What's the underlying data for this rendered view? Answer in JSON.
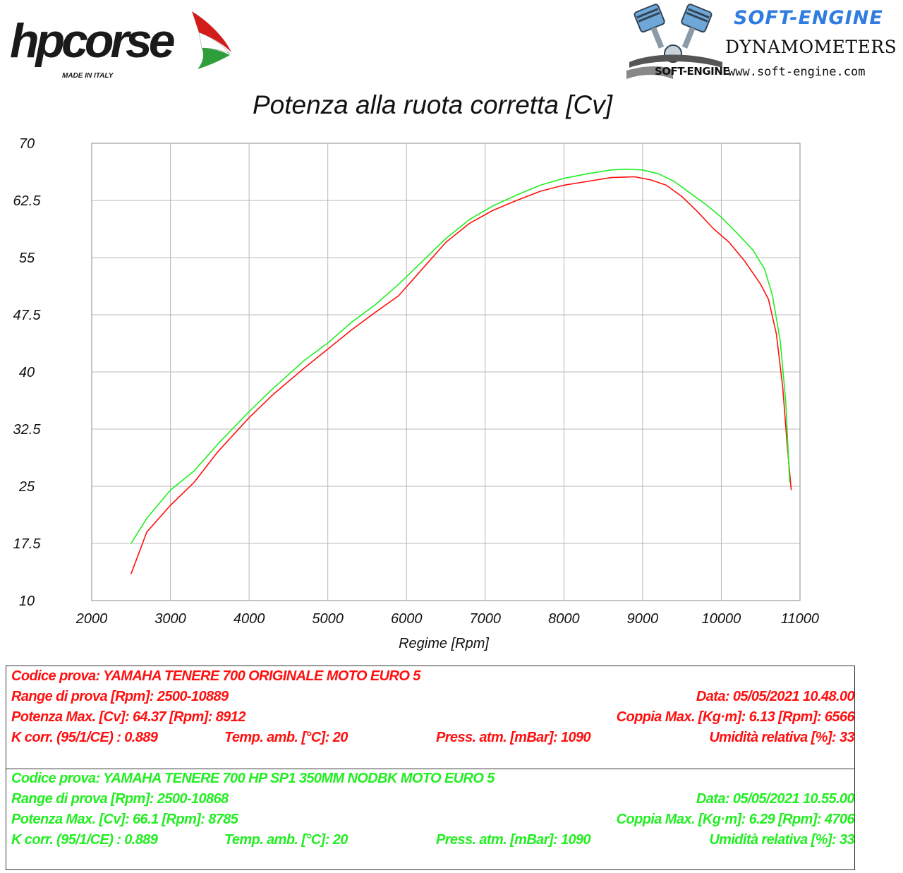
{
  "header": {
    "brand_left": "hpcorse",
    "brand_left_tagline": "MADE IN ITALY",
    "brand_right_title": "SOFT-ENGINE",
    "brand_right_small": "SOFT-ENGINE",
    "brand_right_subtitle": "DYNAMOMETERS",
    "brand_right_url": "www.soft-engine.com"
  },
  "colors": {
    "original": "#ff1010",
    "hp_exhaust": "#22ee22",
    "grid": "#b8b8b8",
    "accent_blue": "#2f7de0"
  },
  "chart_data": {
    "type": "line",
    "title": "Potenza alla ruota corretta [Cv]",
    "xlabel": "Regime [Rpm]",
    "ylabel": "",
    "xlim": [
      2000,
      11000
    ],
    "ylim": [
      10,
      70
    ],
    "x_ticks": [
      "2000",
      "3000",
      "4000",
      "5000",
      "6000",
      "7000",
      "8000",
      "9000",
      "10000",
      "11000"
    ],
    "y_ticks": [
      "10",
      "17.5",
      "25",
      "32.5",
      "40",
      "47.5",
      "55",
      "62.5",
      "70"
    ],
    "grid": true,
    "series": [
      {
        "color": "#ff1010",
        "points": [
          [
            2500,
            13.5
          ],
          [
            2700,
            19
          ],
          [
            3000,
            22.5
          ],
          [
            3300,
            25.5
          ],
          [
            3600,
            29.5
          ],
          [
            4000,
            34
          ],
          [
            4300,
            37
          ],
          [
            4700,
            40.5
          ],
          [
            5000,
            43
          ],
          [
            5300,
            45.5
          ],
          [
            5600,
            47.8
          ],
          [
            5900,
            50
          ],
          [
            6200,
            53.5
          ],
          [
            6500,
            57
          ],
          [
            6800,
            59.5
          ],
          [
            7100,
            61.2
          ],
          [
            7400,
            62.5
          ],
          [
            7700,
            63.7
          ],
          [
            8000,
            64.5
          ],
          [
            8300,
            65
          ],
          [
            8600,
            65.5
          ],
          [
            8900,
            65.6
          ],
          [
            9100,
            65.2
          ],
          [
            9300,
            64.5
          ],
          [
            9500,
            63
          ],
          [
            9700,
            61
          ],
          [
            9900,
            58.8
          ],
          [
            10100,
            57
          ],
          [
            10300,
            54.5
          ],
          [
            10500,
            51.5
          ],
          [
            10600,
            49.5
          ],
          [
            10700,
            45
          ],
          [
            10780,
            38
          ],
          [
            10840,
            30
          ],
          [
            10889,
            24.5
          ]
        ]
      },
      {
        "color": "#22ee22",
        "points": [
          [
            2500,
            17.5
          ],
          [
            2700,
            20.8
          ],
          [
            3000,
            24.5
          ],
          [
            3300,
            27
          ],
          [
            3600,
            30.5
          ],
          [
            4000,
            34.8
          ],
          [
            4300,
            37.8
          ],
          [
            4700,
            41.5
          ],
          [
            5000,
            43.8
          ],
          [
            5300,
            46.5
          ],
          [
            5600,
            48.8
          ],
          [
            5900,
            51.5
          ],
          [
            6200,
            54.5
          ],
          [
            6500,
            57.5
          ],
          [
            6800,
            60
          ],
          [
            7100,
            61.8
          ],
          [
            7400,
            63.2
          ],
          [
            7700,
            64.5
          ],
          [
            8000,
            65.4
          ],
          [
            8300,
            66
          ],
          [
            8600,
            66.5
          ],
          [
            8785,
            66.6
          ],
          [
            9000,
            66.5
          ],
          [
            9200,
            66
          ],
          [
            9400,
            65
          ],
          [
            9600,
            63.5
          ],
          [
            9800,
            62
          ],
          [
            10000,
            60.3
          ],
          [
            10200,
            58.2
          ],
          [
            10400,
            56
          ],
          [
            10550,
            53.5
          ],
          [
            10650,
            50
          ],
          [
            10750,
            44
          ],
          [
            10820,
            36
          ],
          [
            10868,
            25.5
          ]
        ]
      }
    ]
  },
  "runs": [
    {
      "code": "Codice prova: YAMAHA TENERE 700 ORIGINALE  MOTO EURO 5",
      "range": "Range di prova [Rpm]: 2500-10889",
      "date": "Data: 05/05/2021   10.48.00",
      "power": "Potenza Max. [Cv]: 64.37   [Rpm]: 8912",
      "torque": "Coppia Max. [Kg·m]: 6.13   [Rpm]: 6566",
      "kcorr": "K corr. (95/1/CE) : 0.889",
      "temp": "Temp. amb. [°C]: 20",
      "press": "Press. atm. [mBar]: 1090",
      "hum": "Umidità relativa [%]: 33"
    },
    {
      "code": "Codice prova: YAMAHA TENERE 700 HP SP1 350MM NODBK  MOTO EURO 5",
      "range": "Range di prova [Rpm]: 2500-10868",
      "date": "Data: 05/05/2021   10.55.00",
      "power": "Potenza Max. [Cv]: 66.1   [Rpm]: 8785",
      "torque": "Coppia Max. [Kg·m]: 6.29   [Rpm]: 4706",
      "kcorr": "K corr. (95/1/CE) : 0.889",
      "temp": "Temp. amb. [°C]: 20",
      "press": "Press. atm. [mBar]: 1090",
      "hum": "Umidità relativa [%]: 33"
    }
  ]
}
